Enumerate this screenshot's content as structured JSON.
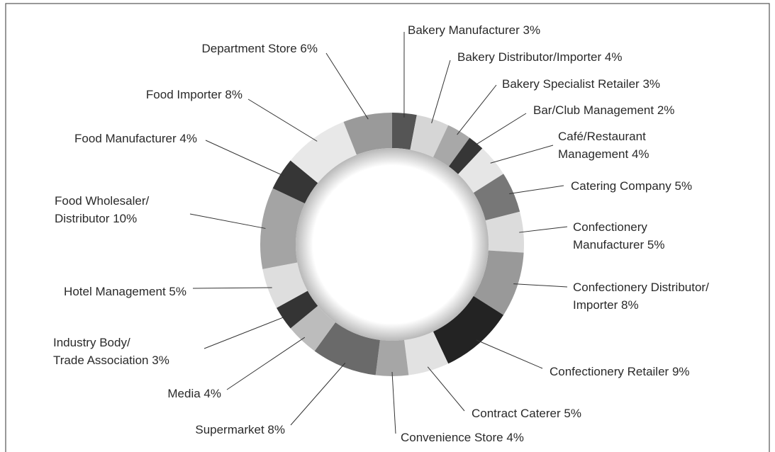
{
  "chart_data": {
    "type": "pie",
    "donut": true,
    "categories": [
      "Bakery Manufacturer",
      "Bakery Distributor/Importer",
      "Bakery Specialist Retailer",
      "Bar/Club Management",
      "Café/Restaurant\nManagement",
      "Catering Company",
      "Confectionery\nManufacturer",
      "Confectionery Distributor/\nImporter",
      "Confectionery Retailer",
      "Contract Caterer",
      "Convenience Store",
      "Supermarket",
      "Media",
      "Industry Body/\nTrade Association",
      "Hotel Management",
      "Food Wholesaler/\nDistributor",
      "Food Manufacturer",
      "Food Importer",
      "Department Store"
    ],
    "values": [
      3,
      4,
      3,
      2,
      4,
      5,
      5,
      8,
      9,
      5,
      4,
      8,
      4,
      3,
      5,
      10,
      4,
      8,
      6
    ],
    "value_labels": [
      "3%",
      "4%",
      "3%",
      "2%",
      "4%",
      "5%",
      "5%",
      "8%",
      "9%",
      "5%",
      "4%",
      "8%",
      "4%",
      "3%",
      "5%",
      "10%",
      "4%",
      "8%",
      "6%"
    ],
    "colors": [
      "#555555",
      "#d6d6d6",
      "#a8a8a8",
      "#363636",
      "#e6e6e6",
      "#777777",
      "#dcdcdc",
      "#999999",
      "#232323",
      "#e2e2e2",
      "#a6a6a6",
      "#6a6a6a",
      "#bcbcbc",
      "#343434",
      "#dedede",
      "#a4a4a4",
      "#363636",
      "#e8e8e8",
      "#9a9a9a"
    ]
  }
}
